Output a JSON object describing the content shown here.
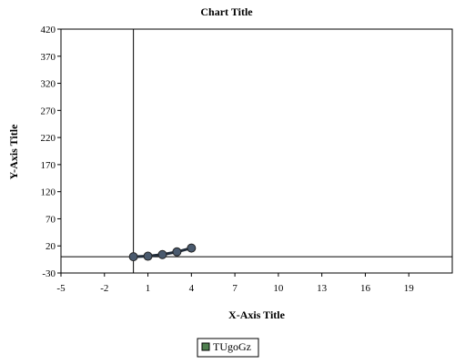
{
  "chart_data": {
    "type": "scatter",
    "title": "Chart Title",
    "xlabel": "X-Axis Title",
    "ylabel": "Y-Axis Title",
    "xlim": [
      -5,
      22
    ],
    "ylim": [
      -30,
      420
    ],
    "x_ticks": [
      -5,
      -2,
      1,
      4,
      7,
      10,
      13,
      16,
      19
    ],
    "y_ticks": [
      -30,
      20,
      70,
      120,
      170,
      220,
      270,
      320,
      370,
      420
    ],
    "grid": false,
    "legend_position": "bottom",
    "series": [
      {
        "name": "TUgoGz",
        "color": "#4a5a6e",
        "legend_color": "#4f7f4f",
        "x": [
          0,
          1,
          2,
          3,
          4
        ],
        "y": [
          0,
          1,
          4,
          9,
          16
        ]
      }
    ]
  }
}
